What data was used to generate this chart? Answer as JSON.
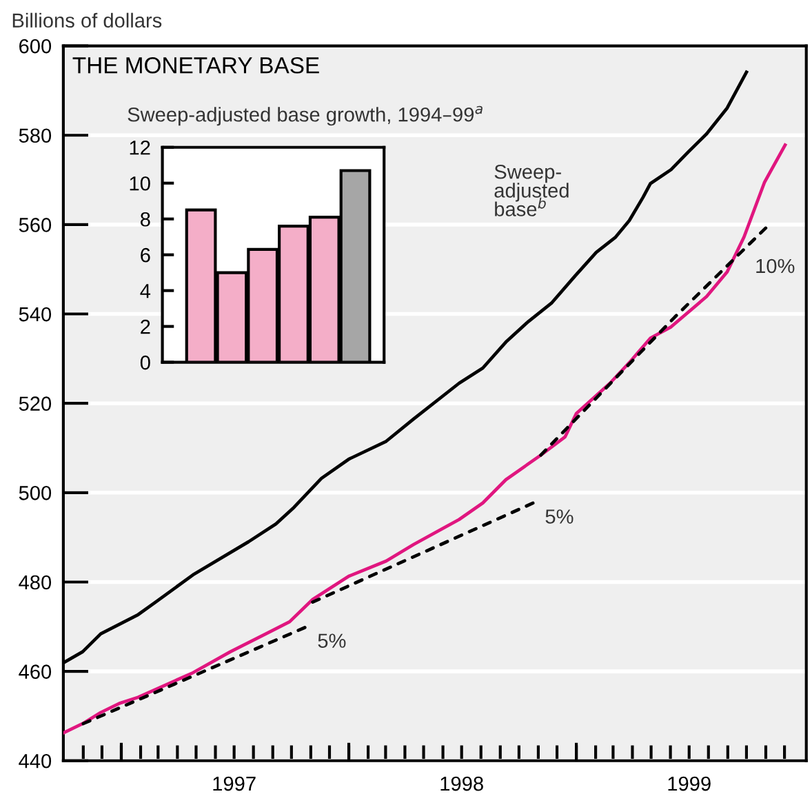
{
  "chart_data": [
    {
      "type": "line",
      "title": "THE MONETARY BASE",
      "ylabel": "Billions of dollars",
      "grid": "y",
      "xlim": [
        "1996-09-30",
        "2000-01-05"
      ],
      "ylim": [
        440,
        600
      ],
      "yticks": [
        440,
        460,
        480,
        500,
        520,
        540,
        560,
        580,
        600
      ],
      "xticks": [
        {
          "value": "1996-11-01",
          "label": null
        },
        {
          "value": "1996-12-01",
          "label": null
        },
        {
          "value": "1997-01-01",
          "label": null
        },
        {
          "value": "1997-02-01",
          "label": null
        },
        {
          "value": "1997-03-01",
          "label": null
        },
        {
          "value": "1997-04-01",
          "label": null
        },
        {
          "value": "1997-05-01",
          "label": null
        },
        {
          "value": "1997-06-01",
          "label": null
        },
        {
          "value": "1997-07-01",
          "label": "1997"
        },
        {
          "value": "1997-08-01",
          "label": null
        },
        {
          "value": "1997-09-01",
          "label": null
        },
        {
          "value": "1997-10-01",
          "label": null
        },
        {
          "value": "1997-11-01",
          "label": null
        },
        {
          "value": "1997-12-01",
          "label": null
        },
        {
          "value": "1998-01-01",
          "label": null
        },
        {
          "value": "1998-02-01",
          "label": null
        },
        {
          "value": "1998-03-01",
          "label": null
        },
        {
          "value": "1998-04-01",
          "label": null
        },
        {
          "value": "1998-05-01",
          "label": null
        },
        {
          "value": "1998-06-01",
          "label": null
        },
        {
          "value": "1998-07-01",
          "label": "1998"
        },
        {
          "value": "1998-08-01",
          "label": null
        },
        {
          "value": "1998-09-01",
          "label": null
        },
        {
          "value": "1998-10-01",
          "label": null
        },
        {
          "value": "1998-11-01",
          "label": null
        },
        {
          "value": "1998-12-01",
          "label": null
        },
        {
          "value": "1999-01-01",
          "label": null
        },
        {
          "value": "1999-02-01",
          "label": null
        },
        {
          "value": "1999-03-01",
          "label": null
        },
        {
          "value": "1999-04-01",
          "label": null
        },
        {
          "value": "1999-05-01",
          "label": null
        },
        {
          "value": "1999-06-01",
          "label": null
        },
        {
          "value": "1999-07-01",
          "label": "1999"
        },
        {
          "value": "1999-08-01",
          "label": null
        },
        {
          "value": "1999-09-01",
          "label": null
        },
        {
          "value": "1999-10-01",
          "label": null
        },
        {
          "value": "1999-11-01",
          "label": null
        },
        {
          "value": "1999-12-01",
          "label": null
        }
      ],
      "series": [
        {
          "name": "Sweep-adjusted base$^{b}$",
          "color": "#000000",
          "line_style": "solid",
          "x": [
            "1996-09-30",
            "1996-10-31",
            "1996-11-29",
            "1997-01-28",
            "1997-02-25",
            "1997-04-26",
            "1997-07-24",
            "1997-09-06",
            "1997-10-05",
            "1997-11-18",
            "1998-01-01",
            "1998-03-02",
            "1998-04-15",
            "1998-06-27",
            "1998-08-04",
            "1998-09-10",
            "1998-10-16",
            "1998-11-22",
            "1998-12-30",
            "1999-02-02",
            "1999-03-05",
            "1999-03-27",
            "1999-04-18",
            "1999-04-30",
            "1999-06-02",
            "1999-06-30",
            "1999-07-29",
            "1999-08-31",
            "1999-10-01"
          ],
          "values": [
            461.9,
            464.4,
            468.4,
            472.7,
            475.5,
            481.6,
            489.0,
            493.0,
            496.7,
            503.2,
            507.5,
            511.5,
            516.5,
            524.5,
            527.9,
            533.7,
            538.3,
            542.4,
            548.5,
            553.8,
            557.2,
            560.9,
            566.1,
            569.2,
            572.3,
            576.3,
            580.3,
            586.1,
            594.1
          ]
        },
        {
          "color": "#e0167f",
          "line_style": "solid",
          "x": [
            "1996-09-30",
            "1996-10-31",
            "1996-11-29",
            "1996-12-30",
            "1997-01-28",
            "1997-04-26",
            "1997-06-25",
            "1997-08-21",
            "1997-09-28",
            "1997-11-04",
            "1998-01-01",
            "1998-03-02",
            "1998-04-15",
            "1998-06-27",
            "1998-08-04",
            "1998-09-10",
            "1998-11-05",
            "1998-12-14",
            "1999-01-01",
            "1999-02-24",
            "1999-03-27",
            "1999-04-30",
            "1999-06-02",
            "1999-07-29",
            "1999-08-31",
            "1999-09-27",
            "1999-10-30",
            "1999-12-02"
          ],
          "values": [
            446.2,
            448.3,
            450.8,
            452.9,
            454.2,
            459.7,
            464.4,
            468.4,
            471.1,
            476.1,
            481.3,
            484.7,
            488.4,
            494.0,
            497.7,
            502.9,
            508.4,
            512.5,
            517.7,
            524.5,
            529.1,
            534.6,
            537.1,
            543.9,
            549.4,
            557.2,
            569.5,
            577.8
          ]
        },
        {
          "name": "5%",
          "color": "#000000",
          "line_style": "dotted",
          "x": [
            "1996-11-01",
            "1997-10-24"
          ],
          "values": [
            448.3,
            469.9
          ]
        },
        {
          "name": "5%",
          "color": "#000000",
          "line_style": "dotted",
          "x": [
            "1997-11-04",
            "1998-10-24"
          ],
          "values": [
            475.5,
            497.7
          ]
        },
        {
          "name": "10%",
          "color": "#000000",
          "line_style": "dotted",
          "x": [
            "1998-11-05",
            "1999-06-08",
            "1999-11-08"
          ],
          "values": [
            508.4,
            539.3,
            560.2
          ]
        }
      ]
    },
    {
      "type": "bar",
      "title": "Sweep-adjusted base growth, 1994–99$^{a}$",
      "categories": [
        null,
        null,
        null,
        null,
        null,
        null
      ],
      "values": [
        8.5,
        5.0,
        6.3,
        7.6,
        8.1,
        10.7
      ],
      "colors": [
        "#f4aec8",
        "#f4aec8",
        "#f4aec8",
        "#f4aec8",
        "#f4aec8",
        "#a6a6a6"
      ],
      "ylim": [
        0,
        12
      ],
      "yticks": [
        0,
        2,
        4,
        6,
        8,
        10,
        12
      ]
    }
  ]
}
